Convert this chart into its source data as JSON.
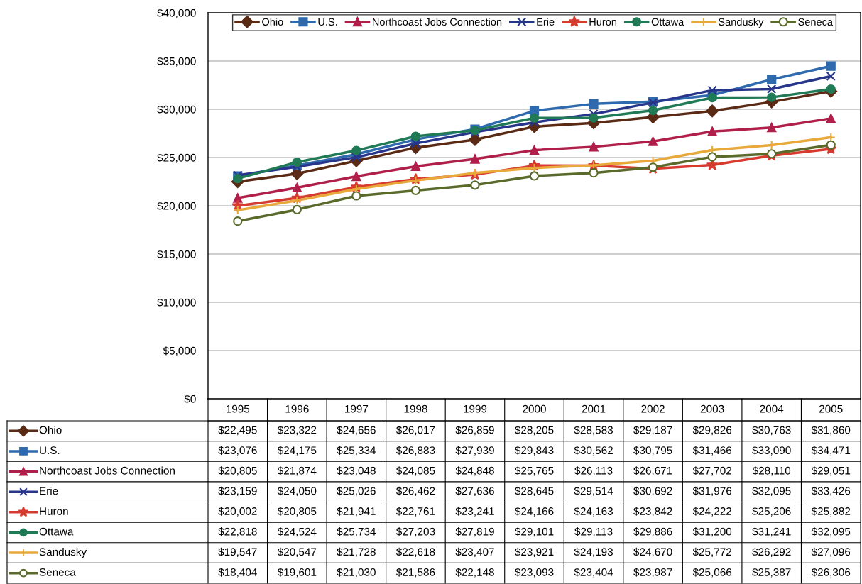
{
  "chart_data": {
    "type": "line",
    "categories": [
      "1995",
      "1996",
      "1997",
      "1998",
      "1999",
      "2000",
      "2001",
      "2002",
      "2003",
      "2004",
      "2005"
    ],
    "ylim": [
      0,
      40000
    ],
    "yticks": [
      {
        "value": 0,
        "label": "$0"
      },
      {
        "value": 5000,
        "label": "$5,000"
      },
      {
        "value": 10000,
        "label": "$10,000"
      },
      {
        "value": 15000,
        "label": "$15,000"
      },
      {
        "value": 20000,
        "label": "$20,000"
      },
      {
        "value": 25000,
        "label": "$25,000"
      },
      {
        "value": 30000,
        "label": "$30,000"
      },
      {
        "value": 35000,
        "label": "$35,000"
      },
      {
        "value": 40000,
        "label": "$40,000"
      }
    ],
    "grid": "y",
    "legend": "top",
    "line_style": "solid",
    "series": [
      {
        "name": "Ohio",
        "color": "#5a2a14",
        "marker": "diamond",
        "values": [
          22495,
          23322,
          24656,
          26017,
          26859,
          28205,
          28583,
          29187,
          29826,
          30763,
          31860
        ],
        "value_labels": [
          "$22,495",
          "$23,322",
          "$24,656",
          "$26,017",
          "$26,859",
          "$28,205",
          "$28,583",
          "$29,187",
          "$29,826",
          "$30,763",
          "$31,860"
        ]
      },
      {
        "name": "U.S.",
        "color": "#2e6aad",
        "marker": "square",
        "values": [
          23076,
          24175,
          25334,
          26883,
          27939,
          29843,
          30562,
          30795,
          31466,
          33090,
          34471
        ],
        "value_labels": [
          "$23,076",
          "$24,175",
          "$25,334",
          "$26,883",
          "$27,939",
          "$29,843",
          "$30,562",
          "$30,795",
          "$31,466",
          "$33,090",
          "$34,471"
        ]
      },
      {
        "name": "Northcoast Jobs Connection",
        "color": "#b01f4a",
        "marker": "triangle",
        "values": [
          20805,
          21874,
          23048,
          24085,
          24848,
          25765,
          26113,
          26671,
          27702,
          28110,
          29051
        ],
        "value_labels": [
          "$20,805",
          "$21,874",
          "$23,048",
          "$24,085",
          "$24,848",
          "$25,765",
          "$26,113",
          "$26,671",
          "$27,702",
          "$28,110",
          "$29,051"
        ]
      },
      {
        "name": "Erie",
        "color": "#27358a",
        "marker": "cross",
        "values": [
          23159,
          24050,
          25026,
          26462,
          27636,
          28645,
          29514,
          30692,
          31976,
          32095,
          33426
        ],
        "value_labels": [
          "$23,159",
          "$24,050",
          "$25,026",
          "$26,462",
          "$27,636",
          "$28,645",
          "$29,514",
          "$30,692",
          "$31,976",
          "$32,095",
          "$33,426"
        ]
      },
      {
        "name": "Huron",
        "color": "#d73a2e",
        "marker": "star",
        "values": [
          20002,
          20805,
          21941,
          22761,
          23241,
          24166,
          24163,
          23842,
          24222,
          25206,
          25882
        ],
        "value_labels": [
          "$20,002",
          "$20,805",
          "$21,941",
          "$22,761",
          "$23,241",
          "$24,166",
          "$24,163",
          "$23,842",
          "$24,222",
          "$25,206",
          "$25,882"
        ]
      },
      {
        "name": "Ottawa",
        "color": "#1f7a55",
        "marker": "circle",
        "values": [
          22818,
          24524,
          25734,
          27203,
          27819,
          29101,
          29113,
          29886,
          31200,
          31241,
          32095
        ],
        "value_labels": [
          "$22,818",
          "$24,524",
          "$25,734",
          "$27,203",
          "$27,819",
          "$29,101",
          "$29,113",
          "$29,886",
          "$31,200",
          "$31,241",
          "$32,095"
        ]
      },
      {
        "name": "Sandusky",
        "color": "#e8a93a",
        "marker": "plus",
        "values": [
          19547,
          20547,
          21728,
          22618,
          23407,
          23921,
          24193,
          24670,
          25772,
          26292,
          27096
        ],
        "value_labels": [
          "$19,547",
          "$20,547",
          "$21,728",
          "$22,618",
          "$23,407",
          "$23,921",
          "$24,193",
          "$24,670",
          "$25,772",
          "$26,292",
          "$27,096"
        ]
      },
      {
        "name": "Seneca",
        "color": "#5a6a2a",
        "marker": "open circle",
        "values": [
          18404,
          19601,
          21030,
          21586,
          22148,
          23093,
          23404,
          23987,
          25066,
          25387,
          26306
        ],
        "value_labels": [
          "$18,404",
          "$19,601",
          "$21,030",
          "$21,586",
          "$22,148",
          "$23,093",
          "$23,404",
          "$23,987",
          "$25,066",
          "$25,387",
          "$26,306"
        ]
      }
    ]
  }
}
